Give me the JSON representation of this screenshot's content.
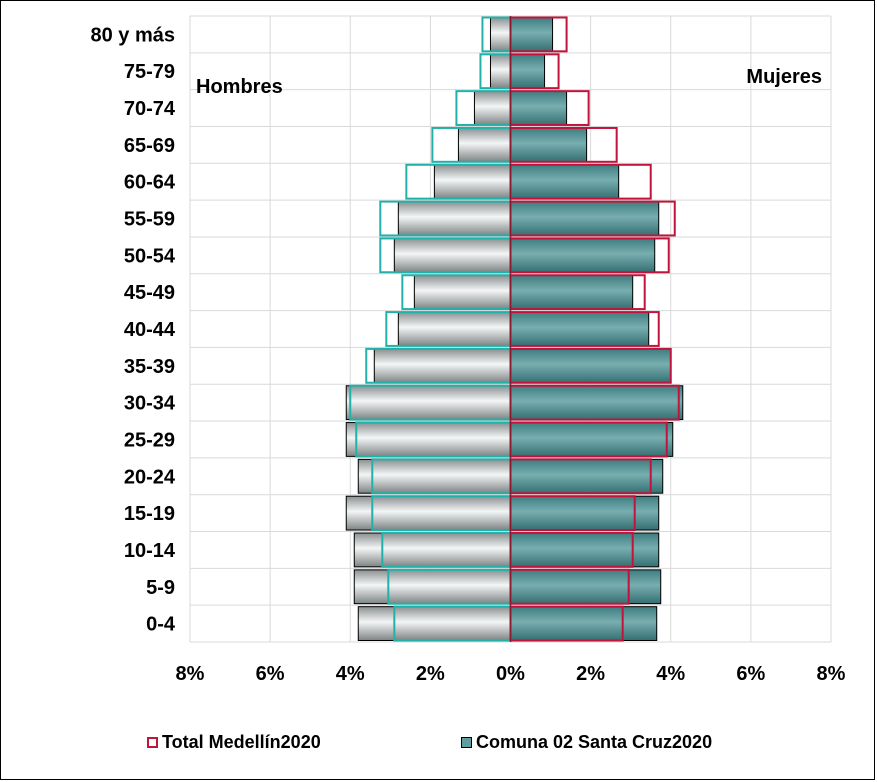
{
  "chart_data": {
    "type": "bar",
    "orientation": "horizontal",
    "subtype": "population-pyramid",
    "title": "",
    "group_labels": {
      "left": "Hombres",
      "right": "Mujeres"
    },
    "categories": [
      "0-4",
      "5-9",
      "10-14",
      "15-19",
      "20-24",
      "25-29",
      "30-34",
      "35-39",
      "40-44",
      "45-49",
      "50-54",
      "55-59",
      "60-64",
      "65-69",
      "70-74",
      "75-79",
      "80 y más"
    ],
    "x_ticks": [
      "8%",
      "6%",
      "4%",
      "2%",
      "0%",
      "2%",
      "4%",
      "6%",
      "8%"
    ],
    "xlim": [
      -8,
      8
    ],
    "grid": true,
    "legend_position": "bottom",
    "series": [
      {
        "name": "Comuna 02 Santa Cruz2020",
        "style": "filled",
        "color": "#5f9ea0",
        "hombres": [
          3.8,
          3.9,
          3.9,
          4.1,
          3.8,
          4.1,
          4.1,
          3.4,
          2.8,
          2.4,
          2.9,
          2.8,
          1.9,
          1.3,
          0.9,
          0.5,
          0.5
        ],
        "mujeres": [
          3.65,
          3.75,
          3.7,
          3.7,
          3.8,
          4.05,
          4.3,
          4.0,
          3.45,
          3.05,
          3.6,
          3.7,
          2.7,
          1.9,
          1.4,
          0.85,
          1.05
        ]
      },
      {
        "name": "Total Medellín2020",
        "style": "outline",
        "color_hombres": "#20b2aa",
        "color_mujeres": "#c0143c",
        "hombres": [
          2.9,
          3.05,
          3.2,
          3.45,
          3.45,
          3.85,
          4.0,
          3.6,
          3.1,
          2.7,
          3.25,
          3.25,
          2.6,
          1.95,
          1.35,
          0.75,
          0.7
        ],
        "mujeres": [
          2.8,
          2.95,
          3.05,
          3.1,
          3.5,
          3.9,
          4.2,
          4.0,
          3.7,
          3.35,
          3.95,
          4.1,
          3.5,
          2.65,
          1.95,
          1.2,
          1.4
        ]
      }
    ]
  },
  "legend": {
    "total_label": "Total Medellín2020",
    "comuna_label": "Comuna 02 Santa Cruz2020"
  }
}
